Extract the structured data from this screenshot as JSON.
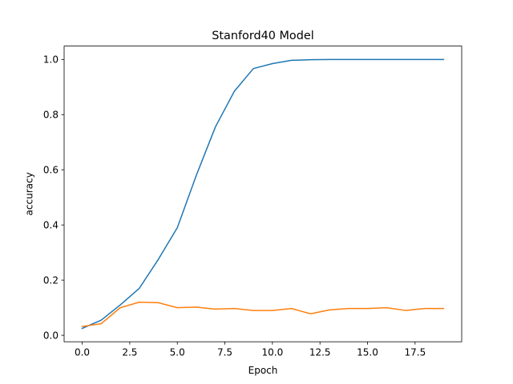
{
  "chart_data": {
    "type": "line",
    "title": "Stanford40 Model",
    "xlabel": "Epoch",
    "ylabel": "accuracy",
    "xlim": [
      -0.95,
      19.95
    ],
    "ylim": [
      -0.0235,
      1.0485
    ],
    "xticks": [
      0.0,
      2.5,
      5.0,
      7.5,
      10.0,
      12.5,
      15.0,
      17.5
    ],
    "xtick_labels": [
      "0.0",
      "2.5",
      "5.0",
      "7.5",
      "10.0",
      "12.5",
      "15.0",
      "17.5"
    ],
    "yticks": [
      0.0,
      0.2,
      0.4,
      0.6,
      0.8,
      1.0
    ],
    "ytick_labels": [
      "0.0",
      "0.2",
      "0.4",
      "0.6",
      "0.8",
      "1.0"
    ],
    "grid": false,
    "x": [
      0,
      1,
      2,
      3,
      4,
      5,
      6,
      7,
      8,
      9,
      10,
      11,
      12,
      13,
      14,
      15,
      16,
      17,
      18,
      19
    ],
    "series": [
      {
        "color": "#1f77b4",
        "values": [
          0.025,
          0.055,
          0.11,
          0.17,
          0.275,
          0.39,
          0.58,
          0.755,
          0.885,
          0.967,
          0.985,
          0.997,
          0.999,
          1.0,
          1.0,
          1.0,
          1.0,
          1.0,
          1.0,
          1.0
        ]
      },
      {
        "color": "#ff7f0e",
        "values": [
          0.032,
          0.042,
          0.1,
          0.12,
          0.118,
          0.1,
          0.102,
          0.095,
          0.097,
          0.09,
          0.09,
          0.097,
          0.078,
          0.092,
          0.097,
          0.097,
          0.1,
          0.09,
          0.097,
          0.097
        ]
      }
    ]
  }
}
